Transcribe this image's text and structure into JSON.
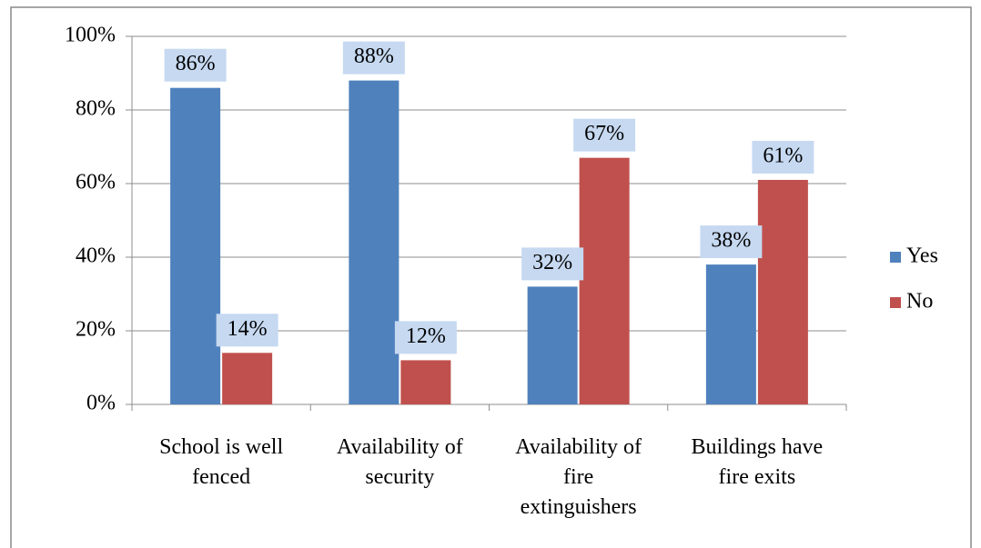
{
  "chart_data": {
    "type": "bar",
    "categories": [
      "School is well fenced",
      "Availability of security",
      "Availability of fire extinguishers",
      "Buildings have fire exits"
    ],
    "series": [
      {
        "name": "Yes",
        "color": "#4f81bd",
        "values": [
          86,
          88,
          32,
          38
        ],
        "value_labels": [
          "86%",
          "88%",
          "32%",
          "38%"
        ]
      },
      {
        "name": "No",
        "color": "#c0504d",
        "values": [
          14,
          12,
          67,
          61
        ],
        "value_labels": [
          "14%",
          "12%",
          "67%",
          "61%"
        ]
      }
    ],
    "ylim": [
      0,
      100
    ],
    "yticks": [
      {
        "value": 0,
        "label": "0%"
      },
      {
        "value": 20,
        "label": "20%"
      },
      {
        "value": 40,
        "label": "40%"
      },
      {
        "value": 60,
        "label": "60%"
      },
      {
        "value": 80,
        "label": "80%"
      },
      {
        "value": 100,
        "label": "100%"
      }
    ],
    "grid": true,
    "legend": "right"
  }
}
